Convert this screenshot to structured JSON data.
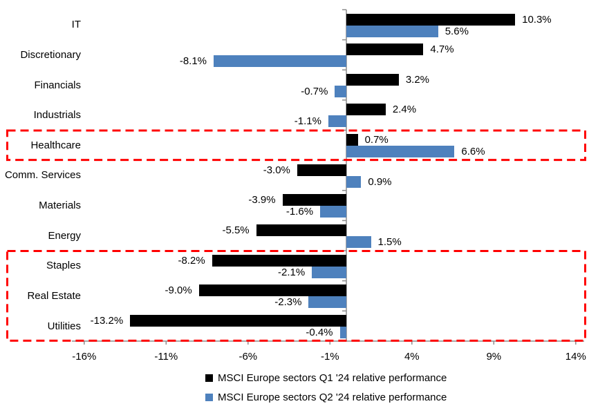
{
  "chart_data": {
    "type": "bar",
    "orientation": "horizontal",
    "title": "",
    "categories": [
      "IT",
      "Discretionary",
      "Financials",
      "Industrials",
      "Healthcare",
      "Comm. Services",
      "Materials",
      "Energy",
      "Staples",
      "Real Estate",
      "Utilities"
    ],
    "series": [
      {
        "name": "MSCI Europe sectors Q1 '24 relative performance",
        "color": "#000000",
        "values": [
          10.3,
          4.7,
          3.2,
          2.4,
          0.7,
          -3.0,
          -3.9,
          -5.5,
          -8.2,
          -9.0,
          -13.2
        ]
      },
      {
        "name": "MSCI Europe sectors Q2 '24 relative performance",
        "color": "#4E81BD",
        "values": [
          5.6,
          -8.1,
          -0.7,
          -1.1,
          6.6,
          0.9,
          -1.6,
          1.5,
          -2.1,
          -2.3,
          -0.4
        ]
      }
    ],
    "data_labels": {
      "format": "{value}%",
      "visible": true
    },
    "x_ticks": [
      {
        "label": "-16%",
        "value": -16
      },
      {
        "label": "-11%",
        "value": -11
      },
      {
        "label": "-6%",
        "value": -6
      },
      {
        "label": "-1%",
        "value": -1
      },
      {
        "label": "4%",
        "value": 4
      },
      {
        "label": "9%",
        "value": 9
      },
      {
        "label": "14%",
        "value": 14
      }
    ],
    "xlim": [
      -16.7,
      14.5
    ],
    "grid": false,
    "legend_position": "bottom",
    "axis_color": "#8C8C8C",
    "highlight_color": "#FF0000",
    "highlights": [
      {
        "rows": [
          "Healthcare"
        ]
      },
      {
        "rows": [
          "Staples",
          "Real Estate",
          "Utilities"
        ]
      }
    ]
  }
}
